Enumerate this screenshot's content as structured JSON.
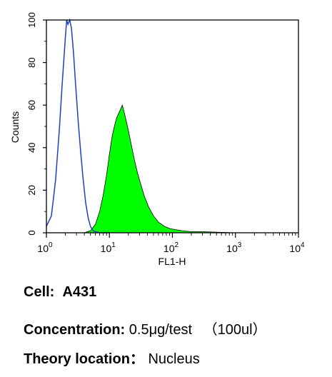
{
  "chart_data": {
    "type": "area",
    "xlabel": "FL1-H",
    "ylabel": "Counts",
    "x_scale": "log",
    "xlim": [
      1,
      10000
    ],
    "ylim": [
      0,
      100
    ],
    "x_ticks": [
      {
        "value": 1,
        "base": "10",
        "exp": "0"
      },
      {
        "value": 10,
        "base": "10",
        "exp": "1"
      },
      {
        "value": 100,
        "base": "10",
        "exp": "2"
      },
      {
        "value": 1000,
        "base": "10",
        "exp": "3"
      },
      {
        "value": 10000,
        "base": "10",
        "exp": "4"
      }
    ],
    "y_ticks": [
      "0",
      "20",
      "40",
      "60",
      "80",
      "100"
    ],
    "grid": false,
    "series": [
      {
        "color": "#1f3fbf",
        "style": "outline",
        "x": [
          1.0,
          1.2,
          1.4,
          1.6,
          1.8,
          2.0,
          2.1,
          2.2,
          2.35,
          2.5,
          2.7,
          2.9,
          3.2,
          3.5,
          3.8,
          4.2,
          4.6,
          5.0,
          5.5,
          6.0,
          7.0,
          8.0,
          10.0
        ],
        "y": [
          3,
          8,
          25,
          48,
          72,
          92,
          100,
          98,
          100,
          96,
          84,
          70,
          52,
          38,
          26,
          14,
          7,
          3,
          1,
          0.5,
          0,
          0,
          0
        ]
      },
      {
        "color": "#00ff00",
        "style": "filled",
        "x": [
          1.0,
          4.0,
          5.0,
          6.0,
          7.0,
          8.0,
          9.0,
          10.0,
          11.0,
          12.0,
          13.0,
          14.0,
          15.0,
          16.0,
          17.0,
          18.0,
          20.0,
          22.0,
          25.0,
          28.0,
          32.0,
          36.0,
          42.0,
          50.0,
          60.0,
          75.0,
          90.0,
          110.0,
          140.0,
          200.0,
          300.0,
          500.0,
          1000.0,
          10000.0
        ],
        "y": [
          0,
          0,
          1,
          4,
          10,
          18,
          27,
          37,
          45,
          50,
          54,
          56,
          58,
          60,
          57,
          54,
          48,
          42,
          34,
          28,
          22,
          17,
          12,
          8,
          5,
          3,
          2,
          1.5,
          1,
          0.5,
          0.5,
          0.3,
          0,
          0
        ]
      }
    ]
  },
  "captions": {
    "cell_label": "Cell:",
    "cell_value": "A431",
    "concentration_label": "Concentration:",
    "concentration_value": "0.5μg/test 　（100ul）",
    "location_label": "Theory location：",
    "location_value": "Nucleus"
  }
}
